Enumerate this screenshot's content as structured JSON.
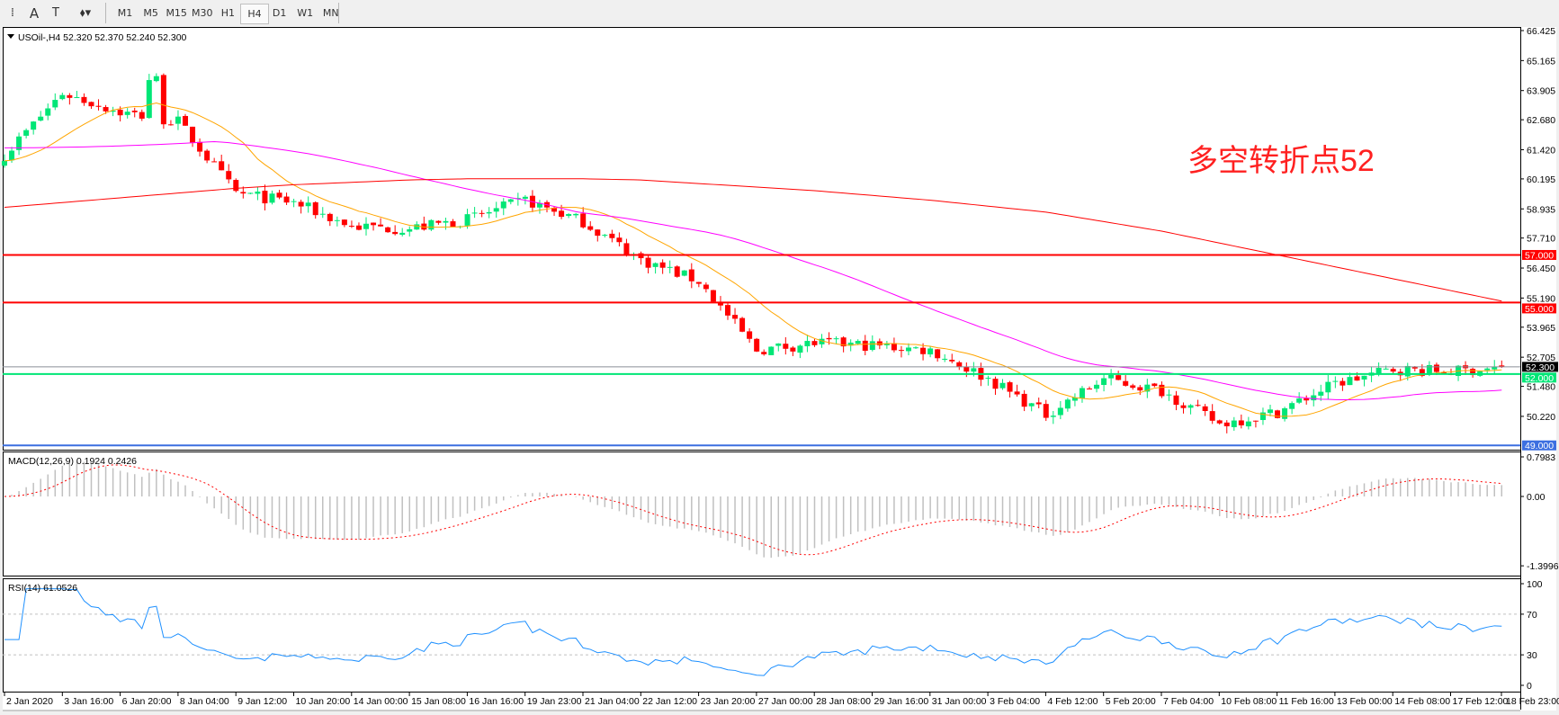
{
  "toolbar": {
    "tools": [
      {
        "name": "period-separator-icon",
        "glyph": "⁞"
      },
      {
        "name": "text-tool-icon",
        "glyph": "A"
      },
      {
        "name": "text-label-tool-icon",
        "glyph": "T"
      },
      {
        "name": "arrows-tool-icon",
        "glyph": "⬧▾"
      }
    ],
    "timeframes": [
      "M1",
      "M5",
      "M15",
      "M30",
      "H1",
      "H4",
      "D1",
      "W1",
      "MN"
    ],
    "active_timeframe": "H4"
  },
  "chart": {
    "header": "USOil-,H4  52.320 52.370 52.240 52.300",
    "annotation": "多空转折点52",
    "annotation_color": "#ff2020",
    "price_ticks": [
      "66.425",
      "65.165",
      "63.905",
      "62.680",
      "61.420",
      "60.195",
      "58.935",
      "57.710",
      "56.450",
      "55.190",
      "53.965",
      "52.705",
      "51.480",
      "50.220"
    ],
    "price_range": [
      50.22,
      66.425
    ],
    "hlines": [
      {
        "price": 57.0,
        "label": "57.000",
        "color": "#ff0000"
      },
      {
        "price": 55.0,
        "label": "55.000",
        "color": "#ff0000"
      },
      {
        "price": 52.0,
        "label": "52.000",
        "color": "#00e676"
      },
      {
        "price": 49.0,
        "label": "49.000",
        "color": "#3c6fe0"
      }
    ],
    "bid": {
      "price": 52.3,
      "label": "52.300"
    },
    "bull_color": "#00e676",
    "bear_color": "#ff0000",
    "date_labels": [
      "2 Jan 2020",
      "3 Jan 16:00",
      "6 Jan 20:00",
      "8 Jan 04:00",
      "9 Jan 12:00",
      "10 Jan 20:00",
      "14 Jan 00:00",
      "15 Jan 08:00",
      "16 Jan 16:00",
      "19 Jan 23:00",
      "21 Jan 04:00",
      "22 Jan 12:00",
      "23 Jan 20:00",
      "27 Jan 00:00",
      "28 Jan 08:00",
      "29 Jan 16:00",
      "31 Jan 00:00",
      "3 Feb 04:00",
      "4 Feb 12:00",
      "5 Feb 20:00",
      "7 Feb 04:00",
      "10 Feb 08:00",
      "11 Feb 16:00",
      "13 Feb 00:00",
      "14 Feb 08:00",
      "17 Feb 12:00",
      "18 Feb 23:00"
    ],
    "closes_at_date_labels": [
      61.2,
      63.8,
      63.0,
      62.6,
      59.6,
      59.2,
      58.2,
      58.1,
      58.5,
      59.3,
      58.4,
      56.8,
      55.9,
      53.0,
      53.3,
      53.2,
      53.0,
      51.8,
      50.3,
      51.8,
      51.3,
      49.9,
      50.4,
      51.6,
      52.2,
      52.1,
      52.3
    ],
    "slow_ma_at_date_labels": [
      59.0,
      59.2,
      59.4,
      59.6,
      59.8,
      59.95,
      60.05,
      60.15,
      60.2,
      60.2,
      60.2,
      60.15,
      60.0,
      59.85,
      59.7,
      59.5,
      59.3,
      59.05,
      58.8,
      58.4,
      58.0,
      57.5,
      57.0,
      56.5,
      56.0,
      55.5,
      55.0
    ],
    "ma_colors": {
      "fast": "#ffa500",
      "medium": "#ff00ff",
      "slow": "#ff0000"
    }
  },
  "macd": {
    "label": "MACD(12,26,9) 0.1924 0.2426",
    "ticks": [
      "0.7983",
      "0.00",
      "-1.3996"
    ],
    "range": [
      -1.3996,
      0.7983
    ]
  },
  "rsi": {
    "label": "RSI(14) 61.0526",
    "ticks": [
      "100",
      "70",
      "30",
      "0"
    ],
    "levels": [
      70,
      30
    ]
  }
}
